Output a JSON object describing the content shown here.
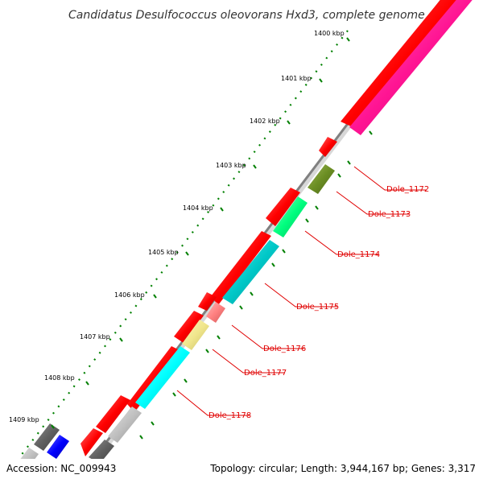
{
  "title": "Candidatus Desulfococcus oleovorans Hxd3, complete genome",
  "footer": {
    "accession": "Accession: NC_009943",
    "topology": "Topology: circular; Length: 3,944,167 bp; Genes: 3,317"
  },
  "kbp_labels": [
    {
      "id": "1400",
      "text": "1400 kbp"
    },
    {
      "id": "1401",
      "text": "1401 kbp"
    },
    {
      "id": "1402",
      "text": "1402 kbp"
    },
    {
      "id": "1403",
      "text": "1403 kbp"
    },
    {
      "id": "1404",
      "text": "1404 kbp"
    },
    {
      "id": "1405",
      "text": "1405 kbp"
    },
    {
      "id": "1406",
      "text": "1406 kbp"
    },
    {
      "id": "1407",
      "text": "1407 kbp"
    },
    {
      "id": "1408",
      "text": "1408 kbp"
    },
    {
      "id": "1409",
      "text": "1409 kbp"
    }
  ],
  "gene_labels": [
    {
      "id": "dole_1172",
      "text": "Dole_1172",
      "color": "#e00000"
    },
    {
      "id": "dole_1173",
      "text": "Dole_1173",
      "color": "#e00000"
    },
    {
      "id": "dole_1174",
      "text": "Dole_1174",
      "color": "#e00000"
    },
    {
      "id": "dole_1175",
      "text": "Dole_1175",
      "color": "#e00000"
    },
    {
      "id": "dole_1176",
      "text": "Dole_1176",
      "color": "#e00000"
    },
    {
      "id": "dole_1177",
      "text": "Dole_1177",
      "color": "#e00000"
    },
    {
      "id": "dole_1178",
      "text": "Dole_1178",
      "color": "#e00000"
    }
  ],
  "colors": {
    "backbone": "#808080",
    "cds": "#ff0000",
    "cog_magenta": "#ff1493",
    "cog_olive": "#6b8e23",
    "cog_green": "#00ff7f",
    "cog_teal": "#00c8c8",
    "cog_pink": "#ff8080",
    "cog_yellow": "#f0e68c",
    "cog_cyan": "#00ffff",
    "cog_grey": "#c0c0c0",
    "cog_dark": "#606060",
    "cog_blue": "#0000ff",
    "tick_green": "#008000",
    "label_red": "#e00000"
  }
}
